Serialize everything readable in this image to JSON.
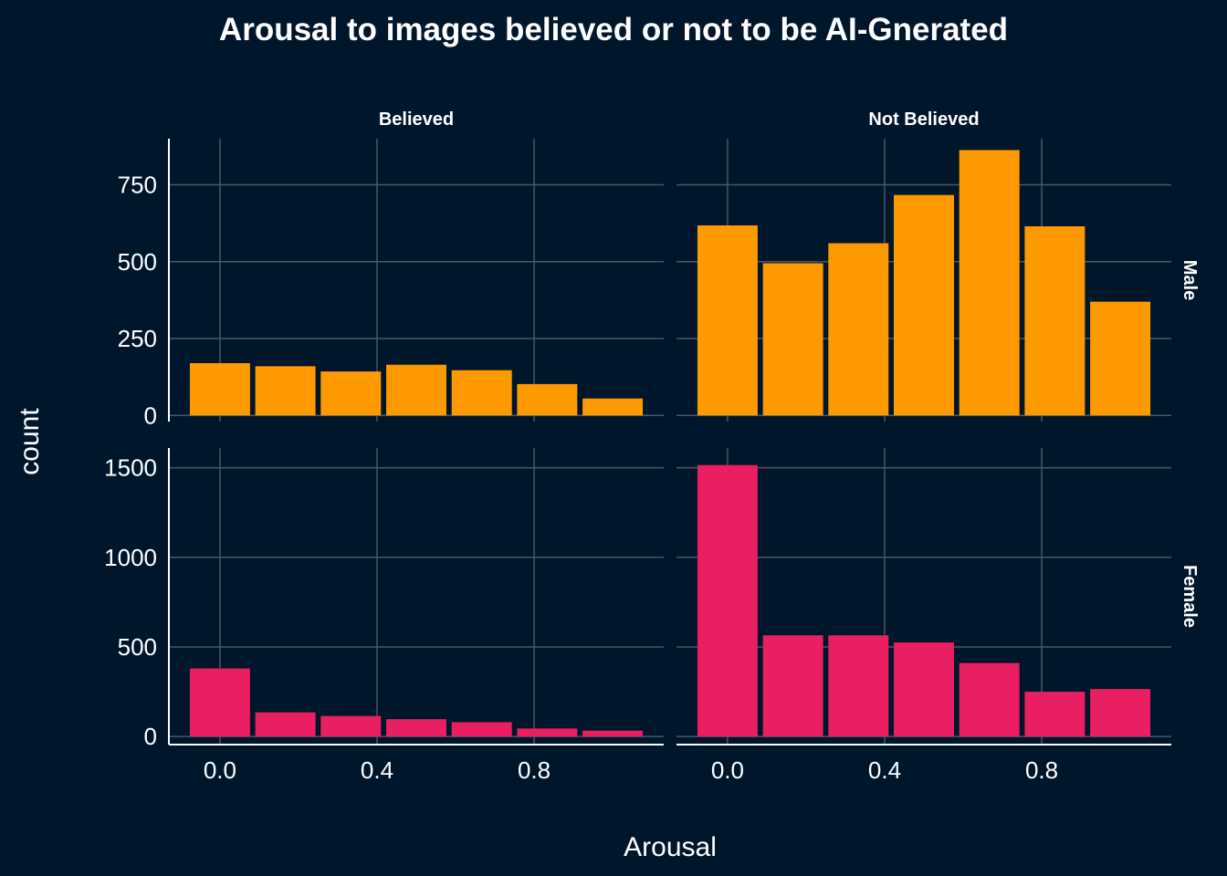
{
  "chart_data": {
    "type": "bar",
    "title": "Arousal to images believed or not to be AI-Gnerated",
    "xlabel": "Arousal",
    "ylabel": "count",
    "background": "#00162b",
    "grid": true,
    "x_ticks": [
      "0.0",
      "0.4",
      "0.8"
    ],
    "x_tick_values": [
      0.0,
      0.4,
      0.8
    ],
    "xlim": [
      -0.13,
      1.13
    ],
    "bin_centers": [
      0.0,
      0.1667,
      0.3333,
      0.5,
      0.6667,
      0.8333,
      1.0
    ],
    "columns": [
      "Believed",
      "Not Believed"
    ],
    "rows": [
      {
        "name": "Male",
        "color": "#ff9900",
        "ylim": [
          -20,
          900
        ],
        "y_ticks": [
          0,
          250,
          500,
          750
        ],
        "y_tick_labels": [
          "0",
          "250",
          "500",
          "750"
        ],
        "panels": [
          {
            "column": "Believed",
            "values": [
              170,
              160,
              143,
              165,
              147,
              102,
              55
            ]
          },
          {
            "column": "Not Believed",
            "values": [
              618,
              495,
              560,
              717,
              863,
              615,
              370
            ]
          }
        ]
      },
      {
        "name": "Female",
        "color": "#e91e63",
        "ylim": [
          -45,
          1610
        ],
        "y_ticks": [
          0,
          500,
          1000,
          1500
        ],
        "y_tick_labels": [
          "0",
          "500",
          "1000",
          "1500"
        ],
        "panels": [
          {
            "column": "Believed",
            "values": [
              380,
              135,
              115,
              97,
              80,
              45,
              33
            ]
          },
          {
            "column": "Not Believed",
            "values": [
              1515,
              565,
              565,
              525,
              410,
              250,
              265
            ]
          }
        ]
      }
    ]
  }
}
